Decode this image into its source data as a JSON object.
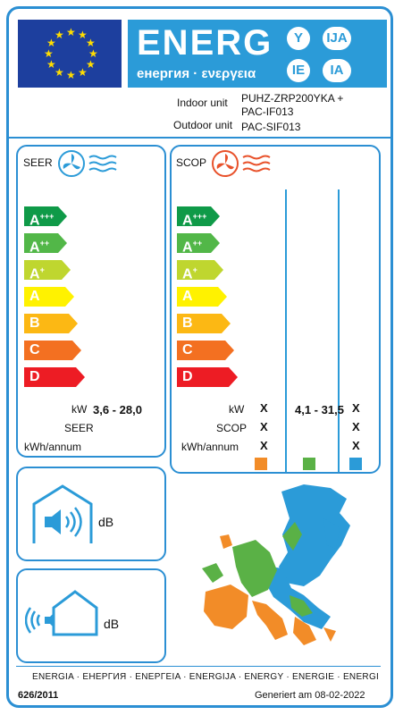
{
  "header": {
    "title": "ENERG",
    "subtitle": "енергия · ενεργεια",
    "codes": [
      "Y",
      "IJA",
      "IE",
      "IA"
    ],
    "indoor_label": "Indoor unit",
    "indoor_value": "PUHZ-ZRP200YKA +",
    "indoor_value2": "PAC-IF013",
    "outdoor_label": "Outdoor unit",
    "outdoor_value": "PAC-SIF013"
  },
  "cooling": {
    "label": "SEER",
    "classes": [
      {
        "letter": "A",
        "sup": "+++",
        "color": "#0f9a48"
      },
      {
        "letter": "A",
        "sup": "++",
        "color": "#52b748"
      },
      {
        "letter": "A",
        "sup": "+",
        "color": "#bfd62f"
      },
      {
        "letter": "A",
        "sup": "",
        "color": "#fff200"
      },
      {
        "letter": "B",
        "sup": "",
        "color": "#fcb814"
      },
      {
        "letter": "C",
        "sup": "",
        "color": "#f37021"
      },
      {
        "letter": "D",
        "sup": "",
        "color": "#ed1c24"
      }
    ],
    "kw_label": "kW",
    "kw_value": "3,6 - 28,0",
    "seer_label": "SEER",
    "kwh_label": "kWh/annum"
  },
  "heating": {
    "label": "SCOP",
    "kw_label": "kW",
    "scop_label": "SCOP",
    "kwh_label": "kWh/annum",
    "mark": "X",
    "kw_value": "4,1 - 31,5",
    "zone_colors": [
      "#f28c28",
      "#5ab146",
      "#2b9bd8"
    ]
  },
  "noise": {
    "indoor_unit": "dB",
    "outdoor_unit": "dB"
  },
  "footer": {
    "languages": "ENERGIA · ЕНЕРГИЯ · ΕΝΕΡΓΕΙΑ · ENERGIJA · ENERGY · ENERGIE · ENERGI",
    "regulation": "626/2011",
    "generated": "Generiert am 08-02-2022"
  }
}
